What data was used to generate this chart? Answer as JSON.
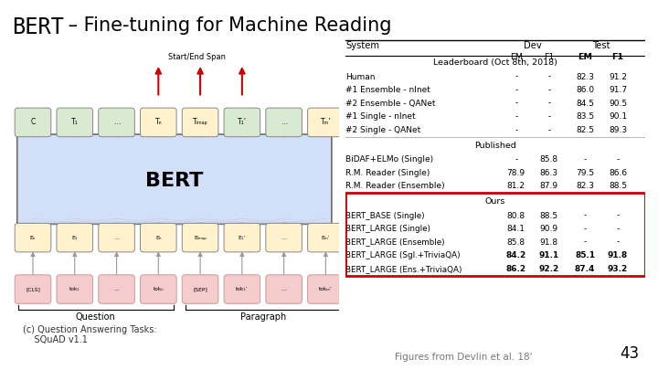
{
  "title_bold": "BERT",
  "title_dash": " – ",
  "title_rest": "Fine-tuning for Machine Reading",
  "bg_color": "#ffffff",
  "footer_text": "Figures from Devlin et al. 18'",
  "page_number": "43",
  "leaderboard_title": "Leaderboard (Oct 8th, 2018)",
  "leaderboard_rows": [
    [
      "Human",
      "-",
      "-",
      "82.3",
      "91.2"
    ],
    [
      "#1 Ensemble - nlnet",
      "-",
      "-",
      "86.0",
      "91.7"
    ],
    [
      "#2 Ensemble - QANet",
      "-",
      "-",
      "84.5",
      "90.5"
    ],
    [
      "#1 Single - nlnet",
      "-",
      "-",
      "83.5",
      "90.1"
    ],
    [
      "#2 Single - QANet",
      "-",
      "-",
      "82.5",
      "89.3"
    ]
  ],
  "published_title": "Published",
  "published_rows": [
    [
      "BiDAF+ELMo (Single)",
      "-",
      "85.8",
      "-",
      "-"
    ],
    [
      "R.M. Reader (Single)",
      "78.9",
      "86.3",
      "79.5",
      "86.6"
    ],
    [
      "R.M. Reader (Ensemble)",
      "81.2",
      "87.9",
      "82.3",
      "88.5"
    ]
  ],
  "ours_title": "Ours",
  "ours_rows": [
    [
      "BERT_BASE (Single)",
      "80.8",
      "88.5",
      "-",
      "-",
      false
    ],
    [
      "BERT_LARGE (Single)",
      "84.1",
      "90.9",
      "-",
      "-",
      false
    ],
    [
      "BERT_LARGE (Ensemble)",
      "85.8",
      "91.8",
      "-",
      "-",
      false
    ],
    [
      "BERT_LARGE (Sgl.+TriviaQA)",
      "84.2",
      "91.1",
      "85.1",
      "91.8",
      true
    ],
    [
      "BERT_LARGE (Ens.+TriviaQA)",
      "86.2",
      "92.2",
      "87.4",
      "93.2",
      true
    ]
  ],
  "red_box_color": "#cc0000",
  "diagram_caption": "(c) Question Answering Tasks:\n    SQuAD v1.1",
  "token_top_colors": [
    "#d9ead3",
    "#d9ead3",
    "#d9ead3",
    "#fff2cc",
    "#fff2cc",
    "#d9ead3",
    "#d9ead3",
    "#fff2cc"
  ],
  "token_top_labels": [
    "C",
    "T₁",
    "…",
    "Tₙ",
    "Tₗₘₐₚ",
    "T₁’",
    "…",
    "Tₘ’"
  ],
  "token_e_colors": [
    "#fff2cc",
    "#fff2cc",
    "#fff2cc",
    "#fff2cc",
    "#fff2cc",
    "#fff2cc",
    "#fff2cc",
    "#fff2cc"
  ],
  "token_e_labels": [
    "Eₑ",
    "E₁",
    "…",
    "Eₙ",
    "Eₗₘₐₚ",
    "E₁’",
    "…",
    "Eₘ’"
  ],
  "token_inp_colors": [
    "#f4cccc",
    "#f4cccc",
    "#f4cccc",
    "#f4cccc",
    "#f4cccc",
    "#f4cccc",
    "#f4cccc",
    "#f4cccc"
  ],
  "token_inp_labels": [
    "[CLS]",
    "tok₁",
    "…",
    "tokₙ",
    "[SEP]",
    "tok₁’",
    "…",
    "tokₘ’"
  ],
  "bert_box_color": "#c9daf8",
  "bert_outline_color": "#000000",
  "arrow_color": "#cc0000"
}
